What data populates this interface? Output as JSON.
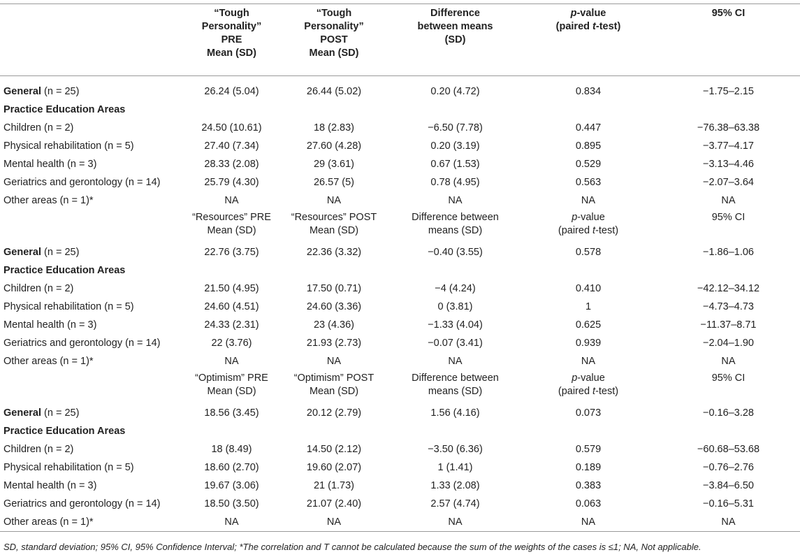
{
  "header": {
    "col1": [
      "“Tough Personality”",
      "PRE",
      "Mean (SD)"
    ],
    "col2": [
      "“Tough",
      "Personality”",
      "POST",
      "Mean (SD)"
    ],
    "col3": [
      "Difference",
      "between means",
      "(SD)"
    ],
    "col4_p": "p",
    "col4_rest": "-value",
    "col4_line2_a": "(paired ",
    "col4_line2_t": "t",
    "col4_line2_b": "-test)",
    "col5": "95% CI"
  },
  "sections": [
    {
      "general": {
        "label_bold": "General",
        "label_n": " (n = 25)",
        "values": [
          "26.24 (5.04)",
          "26.44 (5.02)",
          "0.20 (4.72)",
          "0.834",
          "−1.75–2.15"
        ]
      },
      "areas_title": "Practice Education Areas",
      "rows": [
        {
          "label": "Children (n = 2)",
          "values": [
            "24.50 (10.61)",
            "18 (2.83)",
            "−6.50 (7.78)",
            "0.447",
            "−76.38–63.38"
          ]
        },
        {
          "label": "Physical rehabilitation (n = 5)",
          "values": [
            "27.40 (7.34)",
            "27.60 (4.28)",
            "0.20 (3.19)",
            "0.895",
            "−3.77–4.17"
          ]
        },
        {
          "label": "Mental health (n = 3)",
          "values": [
            "28.33 (2.08)",
            "29 (3.61)",
            "0.67 (1.53)",
            "0.529",
            "−3.13–4.46"
          ]
        },
        {
          "label": "Geriatrics and gerontology (n = 14)",
          "values": [
            "25.79 (4.30)",
            "26.57 (5)",
            "0.78 (4.95)",
            "0.563",
            "−2.07–3.64"
          ]
        },
        {
          "label": "Other areas (n = 1)*",
          "values": [
            "NA",
            "NA",
            "NA",
            "NA",
            "NA"
          ]
        }
      ]
    },
    {
      "subheader": {
        "col1": [
          "“Resources” PRE",
          "Mean (SD)"
        ],
        "col2": [
          "“Resources” POST",
          "Mean (SD)"
        ],
        "col3": [
          "Difference between",
          "means (SD)"
        ],
        "col5": "95% CI"
      },
      "general": {
        "label_bold": "General",
        "label_n": " (n = 25)",
        "values": [
          "22.76 (3.75)",
          "22.36 (3.32)",
          "−0.40 (3.55)",
          "0.578",
          "−1.86–1.06"
        ]
      },
      "areas_title": "Practice Education Areas",
      "rows": [
        {
          "label": "Children (n = 2)",
          "values": [
            "21.50 (4.95)",
            "17.50 (0.71)",
            "−4 (4.24)",
            "0.410",
            "−42.12–34.12"
          ]
        },
        {
          "label": "Physical rehabilitation (n = 5)",
          "values": [
            "24.60 (4.51)",
            "24.60 (3.36)",
            "0 (3.81)",
            "1",
            "−4.73–4.73"
          ]
        },
        {
          "label": "Mental health (n = 3)",
          "values": [
            "24.33 (2.31)",
            "23 (4.36)",
            "−1.33 (4.04)",
            "0.625",
            "−11.37–8.71"
          ]
        },
        {
          "label": "Geriatrics and gerontology (n = 14)",
          "values": [
            "22 (3.76)",
            "21.93 (2.73)",
            "−0.07 (3.41)",
            "0.939",
            "−2.04–1.90"
          ]
        },
        {
          "label": "Other areas (n = 1)*",
          "values": [
            "NA",
            "NA",
            "NA",
            "NA",
            "NA"
          ]
        }
      ]
    },
    {
      "subheader": {
        "col1": [
          "“Optimism” PRE",
          "Mean (SD)"
        ],
        "col2": [
          "“Optimism” POST",
          "Mean (SD)"
        ],
        "col3": [
          "Difference between",
          "means (SD)"
        ],
        "col5": "95% CI"
      },
      "general": {
        "label_bold": "General",
        "label_n": " (n = 25)",
        "values": [
          "18.56 (3.45)",
          "20.12 (2.79)",
          "1.56 (4.16)",
          "0.073",
          "−0.16–3.28"
        ]
      },
      "areas_title": "Practice Education Areas",
      "rows": [
        {
          "label": "Children (n = 2)",
          "values": [
            "18 (8.49)",
            "14.50 (2.12)",
            "−3.50 (6.36)",
            "0.579",
            "−60.68–53.68"
          ]
        },
        {
          "label": "Physical rehabilitation (n = 5)",
          "values": [
            "18.60 (2.70)",
            "19.60 (2.07)",
            "1 (1.41)",
            "0.189",
            "−0.76–2.76"
          ]
        },
        {
          "label": "Mental health (n = 3)",
          "values": [
            "19.67 (3.06)",
            "21 (1.73)",
            "1.33 (2.08)",
            "0.383",
            "−3.84–6.50"
          ]
        },
        {
          "label": "Geriatrics and gerontology (n = 14)",
          "values": [
            "18.50 (3.50)",
            "21.07 (2.40)",
            "2.57 (4.74)",
            "0.063",
            "−0.16–5.31"
          ]
        },
        {
          "label": "Other areas (n = 1)*",
          "values": [
            "NA",
            "NA",
            "NA",
            "NA",
            "NA"
          ]
        }
      ]
    }
  ],
  "footnote": "SD, standard deviation; 95% CI, 95% Confidence Interval; *The correlation and T cannot be calculated because the sum of the weights of the cases is ≤1; NA, Not applicable."
}
